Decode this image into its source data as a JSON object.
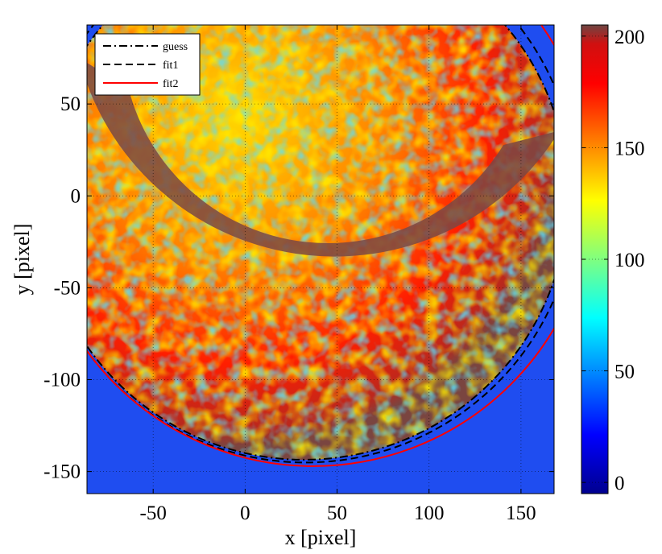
{
  "chart_data": {
    "type": "heatmap",
    "xlabel": "x [pixel]",
    "ylabel": "y [pixel]",
    "xlim": [
      -86,
      168
    ],
    "ylim": [
      -162,
      93
    ],
    "x_ticks": [
      -50,
      0,
      50,
      100,
      150
    ],
    "y_ticks": [
      -150,
      -100,
      -50,
      0,
      50
    ],
    "x_tick_labels": [
      "-50",
      "0",
      "50",
      "100",
      "150"
    ],
    "y_tick_labels": [
      "-150",
      "-100",
      "-50",
      "0",
      "50"
    ],
    "grid": true,
    "colorbar": {
      "colormap": "jet",
      "range": [
        -5,
        205
      ],
      "ticks": [
        0,
        50,
        100,
        150,
        200
      ],
      "tick_labels": [
        "0",
        "50",
        "100",
        "150",
        "200"
      ],
      "top_color": "#6e4542"
    },
    "legend": {
      "position": "top-left",
      "entries": [
        {
          "label": "guess",
          "style": "dash-dot",
          "color": "#000000"
        },
        {
          "label": "fit1",
          "style": "dashed",
          "color": "#000000"
        },
        {
          "label": "fit2",
          "style": "solid",
          "color": "#ff0000"
        }
      ]
    },
    "series": [
      {
        "name": "guess",
        "type": "circle",
        "center": [
          32,
          0
        ],
        "radius": 143.5,
        "color": "#000000"
      },
      {
        "name": "fit1",
        "type": "circle",
        "center": [
          33,
          2
        ],
        "radius": 147,
        "color": "#000000"
      },
      {
        "name": "fit2",
        "type": "circle",
        "center": [
          37,
          5
        ],
        "radius": 152,
        "color": "#ff0000"
      }
    ]
  }
}
